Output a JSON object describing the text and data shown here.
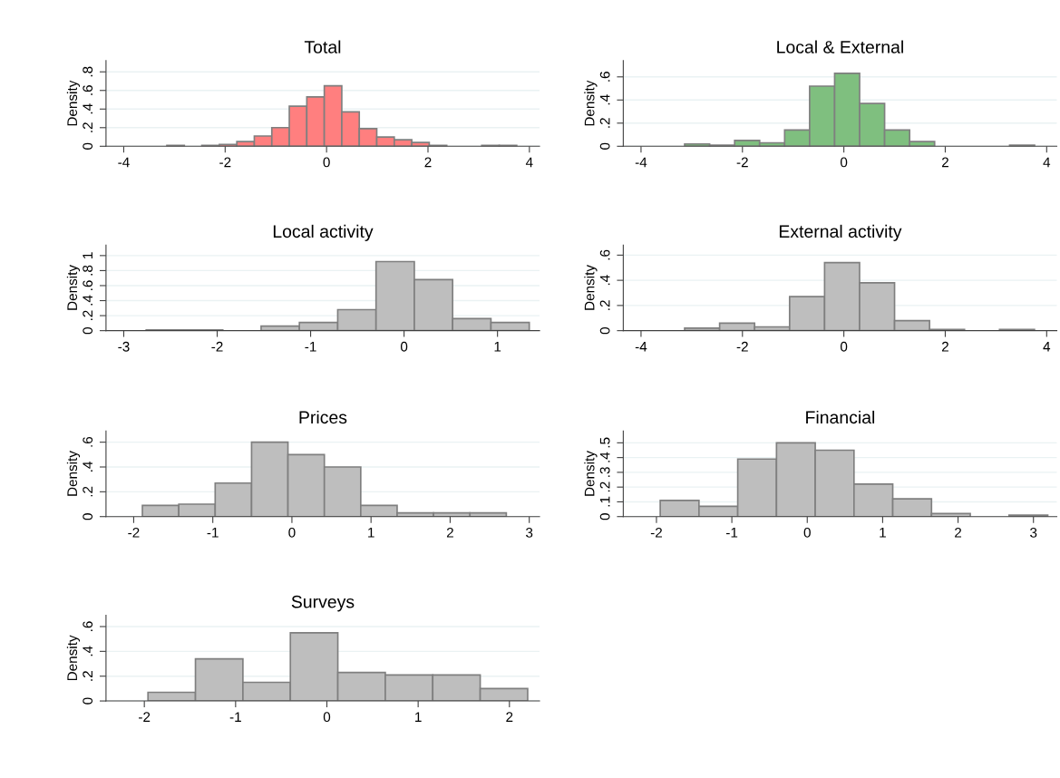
{
  "chart_data": [
    {
      "type": "histogram",
      "title": "Total",
      "ylabel": "Density",
      "color": "#ff7f7f",
      "grid": "y",
      "bins": [
        -3.15,
        -2.805,
        -2.46,
        -2.115,
        -1.77,
        -1.425,
        -1.08,
        -0.735,
        -0.39,
        -0.045,
        0.3,
        0.645,
        0.99,
        1.335,
        1.68,
        2.025,
        2.37,
        2.715,
        3.06,
        3.405,
        3.75
      ],
      "values": [
        0.01,
        0,
        0.01,
        0.02,
        0.05,
        0.11,
        0.2,
        0.43,
        0.53,
        0.65,
        0.37,
        0.19,
        0.1,
        0.07,
        0.04,
        0.01,
        0,
        0,
        0.01,
        0.01
      ],
      "xlim": [
        -4.35,
        4.2
      ],
      "xticks": [
        -4,
        -2,
        0,
        2,
        4
      ],
      "ylim": [
        0,
        0.92
      ],
      "yticks": [
        0,
        {
          "value": 0.2,
          "label": ".2"
        },
        {
          "value": 0.4,
          "label": ".4"
        },
        {
          "value": 0.6,
          "label": ".6"
        },
        {
          "value": 0.8,
          "label": ".8"
        }
      ]
    },
    {
      "type": "histogram",
      "title": "Local & External",
      "ylabel": "Density",
      "color": "#7fbf7f",
      "grid": "y",
      "bins": [
        -3.14,
        -2.647,
        -2.154,
        -1.661,
        -1.168,
        -0.675,
        -0.182,
        0.311,
        0.804,
        1.297,
        1.79,
        2.283,
        2.776,
        3.269,
        3.762
      ],
      "values": [
        0.02,
        0.01,
        0.05,
        0.03,
        0.14,
        0.52,
        0.63,
        0.37,
        0.14,
        0.04,
        0,
        0,
        0,
        0.01
      ],
      "xlim": [
        -4.35,
        4.2
      ],
      "xticks": [
        -4,
        -2,
        0,
        2,
        4
      ],
      "ylim": [
        0,
        0.74
      ],
      "yticks": [
        0,
        {
          "value": 0.2,
          "label": ".2"
        },
        {
          "value": 0.4,
          "label": ".4"
        },
        {
          "value": 0.6,
          "label": ".6"
        }
      ]
    },
    {
      "type": "histogram",
      "title": "Local activity",
      "ylabel": "Density",
      "color": "#bebebe",
      "grid": "y",
      "bins": [
        -2.76,
        -2.35,
        -1.94,
        -1.53,
        -1.12,
        -0.71,
        -0.3,
        0.11,
        0.52,
        0.93,
        1.34
      ],
      "values": [
        0.01,
        0.01,
        0,
        0.06,
        0.11,
        0.28,
        0.92,
        0.68,
        0.16,
        0.11
      ],
      "xlim": [
        -3.19,
        1.45
      ],
      "xticks": [
        -3,
        -2,
        -1,
        0,
        1
      ],
      "ylim": [
        0,
        1.14
      ],
      "yticks": [
        0,
        {
          "value": 0.2,
          "label": ".2"
        },
        {
          "value": 0.4,
          "label": ".4"
        },
        {
          "value": 0.6,
          "label": ".6"
        },
        {
          "value": 0.8,
          "label": ".8"
        },
        1
      ]
    },
    {
      "type": "histogram",
      "title": "External activity",
      "ylabel": "Density",
      "color": "#bebebe",
      "grid": "y",
      "bins": [
        -3.14,
        -2.45,
        -1.76,
        -1.07,
        -0.38,
        0.31,
        1.0,
        1.69,
        2.38,
        3.07,
        3.76
      ],
      "values": [
        0.02,
        0.06,
        0.03,
        0.27,
        0.54,
        0.38,
        0.08,
        0.01,
        0,
        0.01
      ],
      "xlim": [
        -4.35,
        4.2
      ],
      "xticks": [
        -4,
        -2,
        0,
        2,
        4
      ],
      "ylim": [
        0,
        0.68
      ],
      "yticks": [
        0,
        {
          "value": 0.2,
          "label": ".2"
        },
        {
          "value": 0.4,
          "label": ".4"
        },
        {
          "value": 0.6,
          "label": ".6"
        }
      ]
    },
    {
      "type": "histogram",
      "title": "Prices",
      "ylabel": "Density",
      "color": "#bebebe",
      "grid": "y",
      "bins": [
        -1.89,
        -1.43,
        -0.97,
        -0.51,
        -0.05,
        0.41,
        0.87,
        1.33,
        1.79,
        2.25,
        2.71
      ],
      "values": [
        0.09,
        0.1,
        0.27,
        0.6,
        0.5,
        0.4,
        0.09,
        0.03,
        0.03,
        0.03
      ],
      "xlim": [
        -2.35,
        3.13
      ],
      "xticks": [
        -2,
        -1,
        0,
        1,
        2,
        3
      ],
      "ylim": [
        0,
        0.69
      ],
      "yticks": [
        0,
        {
          "value": 0.2,
          "label": ".2"
        },
        {
          "value": 0.4,
          "label": ".4"
        },
        {
          "value": 0.6,
          "label": ".6"
        }
      ]
    },
    {
      "type": "histogram",
      "title": "Financial",
      "ylabel": "Density",
      "color": "#bebebe",
      "grid": "y",
      "bins": [
        -1.95,
        -1.436,
        -0.922,
        -0.408,
        0.106,
        0.62,
        1.134,
        1.648,
        2.162,
        2.676,
        3.19
      ],
      "values": [
        0.11,
        0.07,
        0.39,
        0.5,
        0.45,
        0.22,
        0.12,
        0.02,
        0,
        0.01
      ],
      "xlim": [
        -2.44,
        3.31
      ],
      "xticks": [
        -2,
        -1,
        0,
        1,
        2,
        3
      ],
      "ylim": [
        0,
        0.58
      ],
      "yticks": [
        0,
        {
          "value": 0.1,
          "label": ".1"
        },
        {
          "value": 0.2,
          "label": ".2"
        },
        {
          "value": 0.3,
          "label": ".3"
        },
        {
          "value": 0.4,
          "label": ".4"
        },
        {
          "value": 0.5,
          "label": ".5"
        }
      ]
    },
    {
      "type": "histogram",
      "title": "Surveys",
      "ylabel": "Density",
      "color": "#bebebe",
      "grid": "y",
      "bins": [
        -1.96,
        -1.44,
        -0.92,
        -0.4,
        0.12,
        0.64,
        1.16,
        1.68,
        2.2
      ],
      "values": [
        0.07,
        0.34,
        0.15,
        0.55,
        0.23,
        0.21,
        0.21,
        0.1
      ],
      "xlim": [
        -2.42,
        2.33
      ],
      "xticks": [
        -2,
        -1,
        0,
        1,
        2
      ],
      "ylim": [
        0,
        0.69
      ],
      "yticks": [
        0,
        {
          "value": 0.2,
          "label": ".2"
        },
        {
          "value": 0.4,
          "label": ".4"
        },
        {
          "value": 0.6,
          "label": ".6"
        }
      ]
    }
  ]
}
